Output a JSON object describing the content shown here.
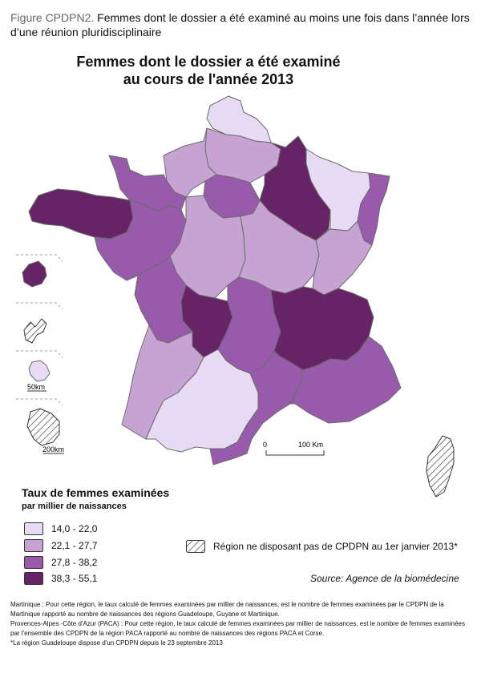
{
  "figure": {
    "label": "Figure CPDPN2.",
    "caption": " Femmes dont le dossier a été examiné au moins une fois dans l’année lors d’une réunion pluridisciplinaire"
  },
  "map": {
    "title_line1": "Femmes dont le dossier a été examiné",
    "title_line2": "au cours de l'année 2013",
    "scale_zero": "0",
    "scale_max": "100 Km",
    "inset_scale_1": "50km",
    "inset_scale_2": "200km"
  },
  "legend": {
    "title": "Taux de femmes examinées",
    "subtitle": "par millier de naissances",
    "classes": [
      {
        "label": "14,0 - 22,0",
        "color": "#e6dbf3"
      },
      {
        "label": "22,1 - 27,7",
        "color": "#c6a3d2"
      },
      {
        "label": "27,8 - 38,2",
        "color": "#985aaa"
      },
      {
        "label": "38,3 - 55,1",
        "color": "#662366"
      }
    ],
    "hatch_label": "Région ne disposant pas de CPDPN au 1er janvier 2013*"
  },
  "source": "Source: Agence de la biomédecine",
  "notes": [
    "Martinique : Pour cette région, le taux calculé de femmes examinées par millier de naissances, est le nombre de femmes examinées par le CPDPN de la Martinique rapporté au nombre de naissances des régions Guadeloupe, Guyane et Martinique.",
    "Provences-Alpes -Côte d'Azur (PACA) : Pour cette région, le taux calculé de femmes examinées par millier de naissances, est le nombre de femmes examinées par l'ensemble des CPDPN de la région PACA rapporté au nombre de naissances des régions PACA et Corse.",
    "*La région Guadeloupe dispose d'un CPDPN depuis le 23 septembre 2013"
  ]
}
